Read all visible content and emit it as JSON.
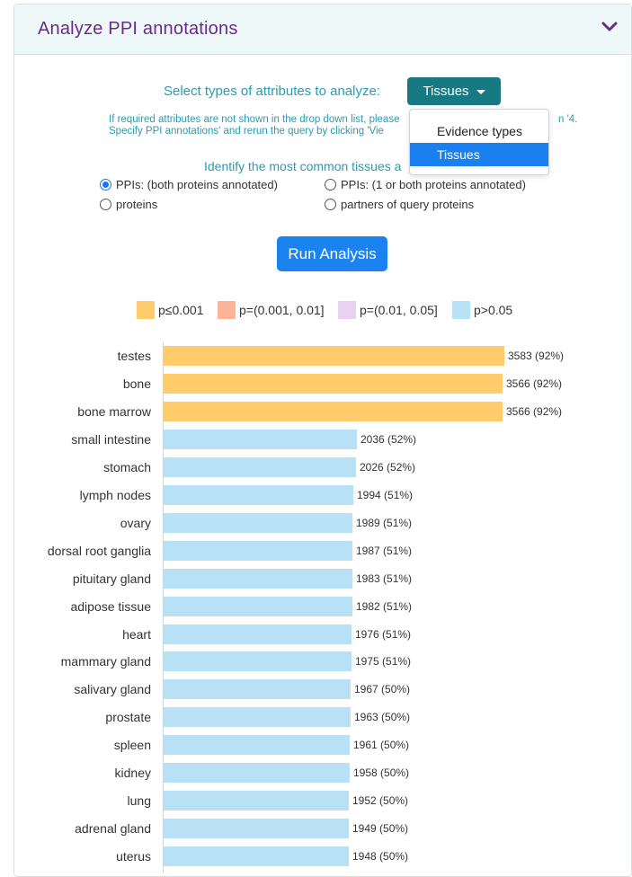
{
  "panel": {
    "title": "Analyze PPI annotations",
    "collapse_icon": "chevron-down-icon"
  },
  "select": {
    "label": "Select types of attributes to analyze:",
    "button_label": "Tissues"
  },
  "info": {
    "line1": "If required attributes are not shown in the drop down list, please",
    "line1_tail": "n '4.",
    "line2": "Specify PPI annotations' and rerun the query by clicking 'Vie"
  },
  "identify": {
    "text": "Identify the most common tissues a"
  },
  "radios": {
    "ppis_both": "PPIs: (both proteins annotated)",
    "ppis_one": "PPIs: (1 or both proteins annotated)",
    "proteins": "proteins",
    "partners": "partners of query proteins"
  },
  "dropdown": {
    "items": [
      "Evidence types",
      "Tissues"
    ],
    "selected": "Tissues"
  },
  "run_button": "Run Analysis",
  "legend": [
    {
      "label": "p≤0.001",
      "color": "#ffcb6b"
    },
    {
      "label": "p=(0.001, 0.01]",
      "color": "#ffb499"
    },
    {
      "label": "p=(0.01, 0.05]",
      "color": "#e7d3ef"
    },
    {
      "label": "p>0.05",
      "color": "#b9e1f5"
    }
  ],
  "chart_data": {
    "type": "bar",
    "orientation": "horizontal",
    "categories": [
      "testes",
      "bone",
      "bone marrow",
      "small intestine",
      "stomach",
      "lymph nodes",
      "ovary",
      "dorsal root ganglia",
      "pituitary gland",
      "adipose tissue",
      "heart",
      "mammary gland",
      "salivary gland",
      "prostate",
      "spleen",
      "kidney",
      "lung",
      "adrenal gland",
      "uterus"
    ],
    "values": [
      3583,
      3566,
      3566,
      2036,
      2026,
      1994,
      1989,
      1987,
      1983,
      1982,
      1976,
      1975,
      1967,
      1963,
      1961,
      1958,
      1952,
      1949,
      1948
    ],
    "labels": [
      "3583 (92%)",
      "3566 (92%)",
      "3566 (92%)",
      "2036 (52%)",
      "2026 (52%)",
      "1994 (51%)",
      "1989 (51%)",
      "1987 (51%)",
      "1983 (51%)",
      "1982 (51%)",
      "1976 (51%)",
      "1975 (51%)",
      "1967 (50%)",
      "1963 (50%)",
      "1961 (50%)",
      "1958 (50%)",
      "1952 (50%)",
      "1949 (50%)",
      "1948 (50%)"
    ],
    "significance": [
      "p≤0.001",
      "p≤0.001",
      "p≤0.001",
      "p>0.05",
      "p>0.05",
      "p>0.05",
      "p>0.05",
      "p>0.05",
      "p>0.05",
      "p>0.05",
      "p>0.05",
      "p>0.05",
      "p>0.05",
      "p>0.05",
      "p>0.05",
      "p>0.05",
      "p>0.05",
      "p>0.05",
      "p>0.05"
    ],
    "xlim": [
      0,
      3583
    ]
  }
}
